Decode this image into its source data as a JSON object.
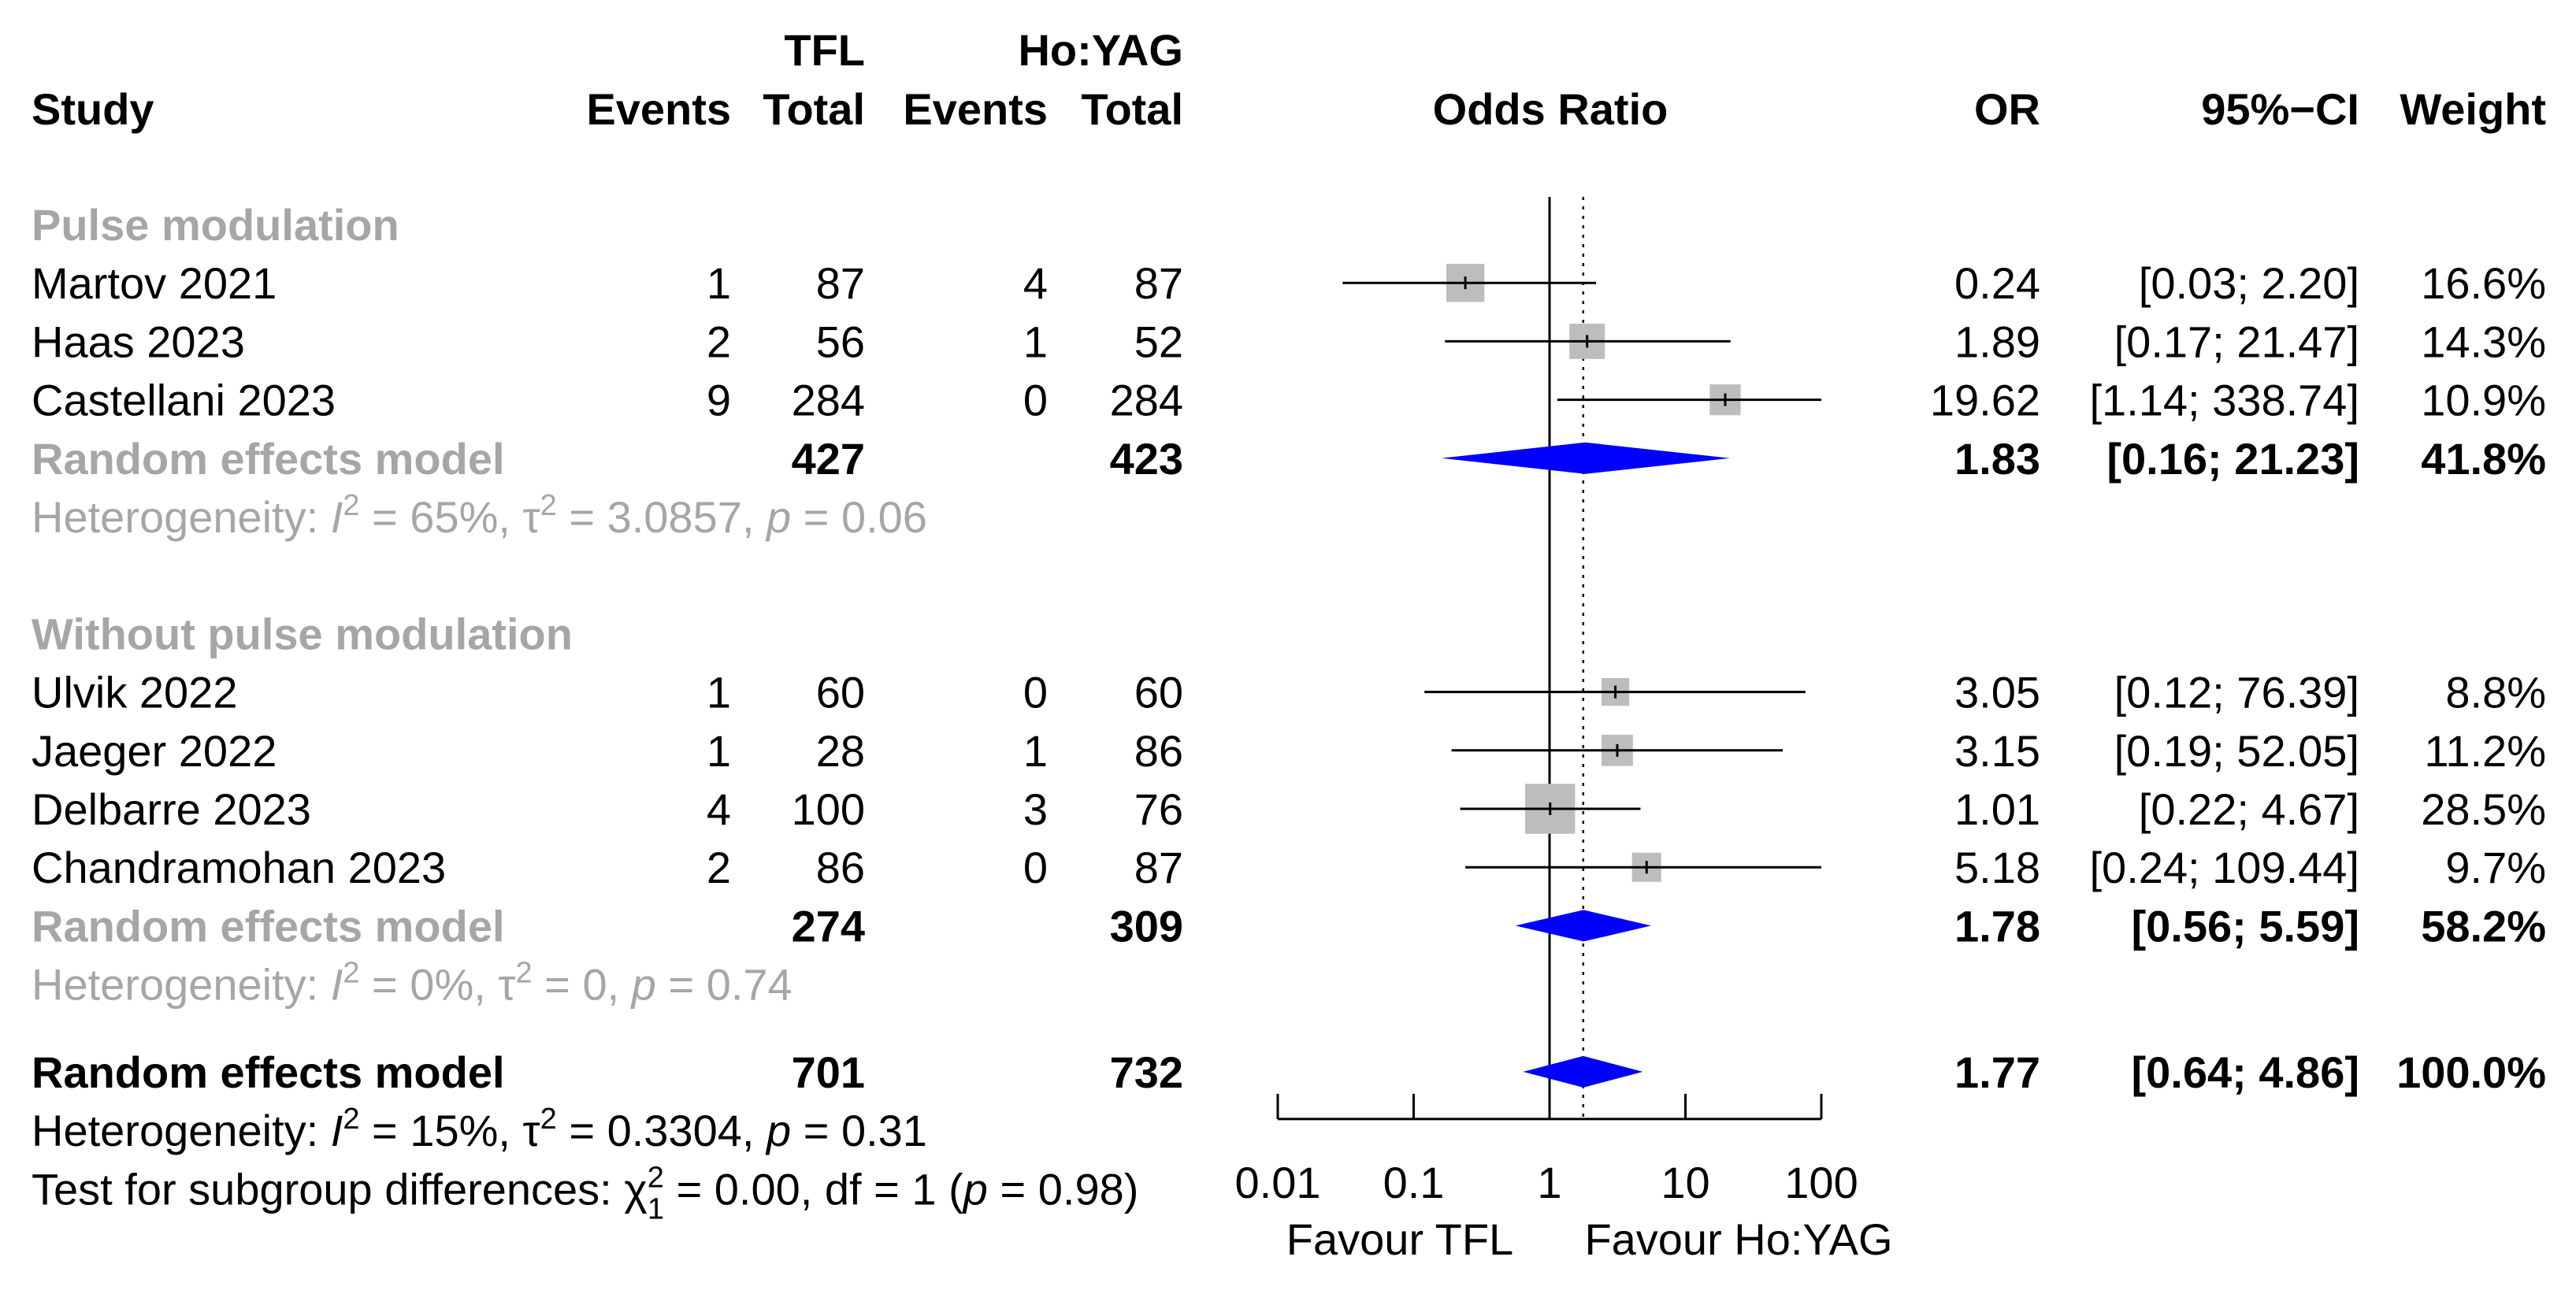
{
  "chart_data": {
    "type": "forest",
    "scale": "log",
    "xlim": [
      0.01,
      100
    ],
    "null_value": 1,
    "ticks": [
      {
        "value": 0.01,
        "label": "0.01"
      },
      {
        "value": 0.1,
        "label": "0.1"
      },
      {
        "value": 1,
        "label": "1"
      },
      {
        "value": 10,
        "label": "10"
      },
      {
        "value": 100,
        "label": "100"
      }
    ],
    "xlabel_left": "Favour TFL",
    "xlabel_right": "Favour Ho:YAG",
    "colors": {
      "box": "#bdbdbd",
      "diamond": "#0000ff",
      "subgroup_text": "#a6a6a6",
      "line": "#000000"
    },
    "header": {
      "group1": "TFL",
      "group2": "Ho:YAG",
      "study": "Study",
      "events": "Events",
      "total": "Total",
      "effect": "Odds Ratio",
      "or": "OR",
      "ci": "95%−CI",
      "weight": "Weight"
    },
    "subgroups": [
      {
        "name": "Pulse modulation",
        "studies": [
          {
            "study": "Martov 2021",
            "e1": "1",
            "n1": "87",
            "e2": "4",
            "n2": "87",
            "or": 0.24,
            "lo": 0.03,
            "hi": 2.2,
            "or_text": "0.24",
            "ci_text": "[0.03;   2.20]",
            "weight": 16.6,
            "weight_text": "16.6%"
          },
          {
            "study": "Haas 2023",
            "e1": "2",
            "n1": "56",
            "e2": "1",
            "n2": "52",
            "or": 1.89,
            "lo": 0.17,
            "hi": 21.47,
            "or_text": "1.89",
            "ci_text": "[0.17;  21.47]",
            "weight": 14.3,
            "weight_text": "14.3%"
          },
          {
            "study": "Castellani 2023",
            "e1": "9",
            "n1": "284",
            "e2": "0",
            "n2": "284",
            "or": 19.62,
            "lo": 1.14,
            "hi": 338.74,
            "or_text": "19.62",
            "ci_text": "[1.14; 338.74]",
            "weight": 10.9,
            "weight_text": "10.9%"
          }
        ],
        "pooled": {
          "label": "Random effects model",
          "n1": "427",
          "n2": "423",
          "or": 1.83,
          "lo": 0.16,
          "hi": 21.23,
          "or_text": "1.83",
          "ci_text": "[0.16;  21.23]",
          "weight_text": "41.8%"
        },
        "heterogeneity": {
          "prefix": "Heterogeneity: ",
          "I2": "65%",
          "tau2": "3.0857",
          "p": "0.06"
        }
      },
      {
        "name": "Without pulse modulation",
        "studies": [
          {
            "study": "Ulvik 2022",
            "e1": "1",
            "n1": "60",
            "e2": "0",
            "n2": "60",
            "or": 3.05,
            "lo": 0.12,
            "hi": 76.39,
            "or_text": "3.05",
            "ci_text": "[0.12;  76.39]",
            "weight": 8.8,
            "weight_text": "8.8%"
          },
          {
            "study": "Jaeger 2022",
            "e1": "1",
            "n1": "28",
            "e2": "1",
            "n2": "86",
            "or": 3.15,
            "lo": 0.19,
            "hi": 52.05,
            "or_text": "3.15",
            "ci_text": "[0.19;  52.05]",
            "weight": 11.2,
            "weight_text": "11.2%"
          },
          {
            "study": "Delbarre 2023",
            "e1": "4",
            "n1": "100",
            "e2": "3",
            "n2": "76",
            "or": 1.01,
            "lo": 0.22,
            "hi": 4.67,
            "or_text": "1.01",
            "ci_text": "[0.22;   4.67]",
            "weight": 28.5,
            "weight_text": "28.5%"
          },
          {
            "study": "Chandramohan 2023",
            "e1": "2",
            "n1": "86",
            "e2": "0",
            "n2": "87",
            "or": 5.18,
            "lo": 0.24,
            "hi": 109.44,
            "or_text": "5.18",
            "ci_text": "[0.24; 109.44]",
            "weight": 9.7,
            "weight_text": "9.7%"
          }
        ],
        "pooled": {
          "label": "Random effects model",
          "n1": "274",
          "n2": "309",
          "or": 1.78,
          "lo": 0.56,
          "hi": 5.59,
          "or_text": "1.78",
          "ci_text": "[0.56;   5.59]",
          "weight_text": "58.2%"
        },
        "heterogeneity": {
          "prefix": "Heterogeneity: ",
          "I2": "0%",
          "tau2": "0",
          "p": "0.74"
        }
      }
    ],
    "overall": {
      "label": "Random effects model",
      "n1": "701",
      "n2": "732",
      "or": 1.77,
      "lo": 0.64,
      "hi": 4.86,
      "or_text": "1.77",
      "ci_text": "[0.64;   4.86]",
      "weight_text": "100.0%",
      "heterogeneity": {
        "prefix": "Heterogeneity: ",
        "I2": "15%",
        "tau2": "0.3304",
        "p": "0.31"
      },
      "subgroup_test": {
        "prefix": "Test for subgroup differences: ",
        "chi2": "0.00",
        "df": "1",
        "p": "0.98"
      }
    }
  }
}
